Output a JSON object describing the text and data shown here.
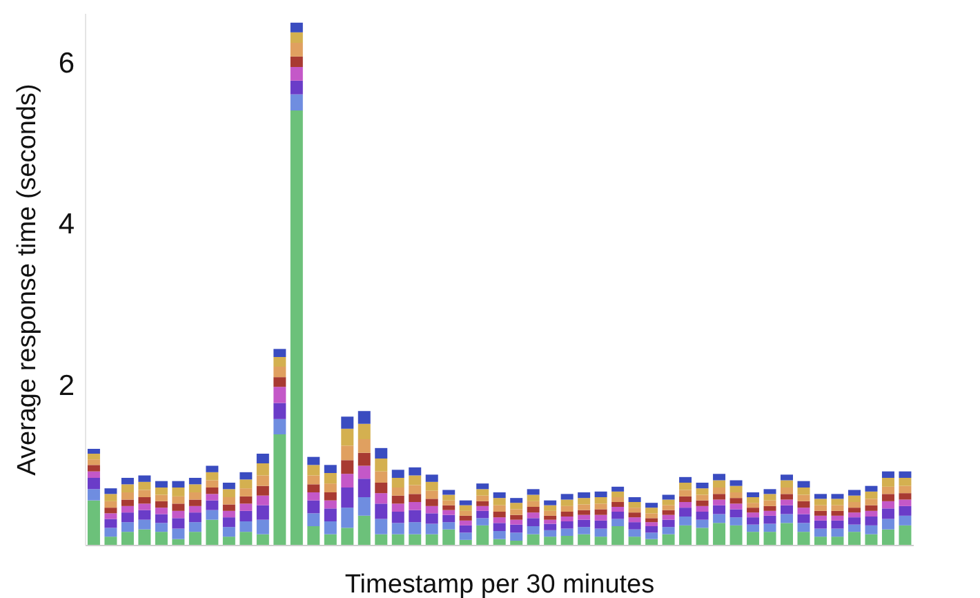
{
  "chart_data": {
    "type": "bar",
    "stacked": true,
    "xlabel": "Timestamp per 30 minutes",
    "ylabel": "Average response time (seconds)",
    "categories": [
      null,
      null,
      null,
      null,
      null,
      null,
      null,
      null,
      null,
      null,
      null,
      null,
      null,
      null,
      null,
      null,
      null,
      null,
      null,
      null,
      null,
      null,
      null,
      null,
      null,
      null,
      null,
      null,
      null,
      null,
      null,
      null,
      null,
      null,
      null,
      null,
      null,
      null,
      null,
      null,
      null,
      null,
      null,
      null,
      null,
      null,
      null,
      null,
      null
    ],
    "ylim": [
      0,
      6.6
    ],
    "yticks": [
      2,
      4,
      6
    ],
    "grid": false,
    "legend": false,
    "series": [
      {
        "color": "#6cc17a",
        "values": [
          0.56,
          0.11,
          0.17,
          0.2,
          0.17,
          0.08,
          0.17,
          0.32,
          0.11,
          0.17,
          0.14,
          1.38,
          5.4,
          0.24,
          0.14,
          0.22,
          0.37,
          0.14,
          0.14,
          0.14,
          0.14,
          0.2,
          0.07,
          0.25,
          0.08,
          0.06,
          0.14,
          0.11,
          0.12,
          0.14,
          0.11,
          0.24,
          0.11,
          0.08,
          0.14,
          0.25,
          0.22,
          0.28,
          0.25,
          0.17,
          0.17,
          0.28,
          0.17,
          0.11,
          0.11,
          0.17,
          0.14,
          0.2,
          0.25
        ]
      },
      {
        "color": "#6f8de0",
        "values": [
          0.14,
          0.11,
          0.12,
          0.12,
          0.11,
          0.13,
          0.12,
          0.12,
          0.12,
          0.13,
          0.18,
          0.19,
          0.2,
          0.16,
          0.16,
          0.25,
          0.23,
          0.19,
          0.14,
          0.15,
          0.13,
          0.09,
          0.09,
          0.09,
          0.1,
          0.1,
          0.1,
          0.08,
          0.09,
          0.09,
          0.1,
          0.09,
          0.09,
          0.08,
          0.09,
          0.11,
          0.1,
          0.11,
          0.1,
          0.09,
          0.1,
          0.11,
          0.11,
          0.1,
          0.1,
          0.09,
          0.11,
          0.13,
          0.12
        ]
      },
      {
        "color": "#6a3cc8",
        "values": [
          0.14,
          0.11,
          0.12,
          0.12,
          0.11,
          0.13,
          0.12,
          0.12,
          0.12,
          0.13,
          0.18,
          0.2,
          0.17,
          0.16,
          0.16,
          0.25,
          0.23,
          0.19,
          0.14,
          0.15,
          0.13,
          0.09,
          0.09,
          0.09,
          0.1,
          0.1,
          0.1,
          0.08,
          0.09,
          0.09,
          0.1,
          0.09,
          0.09,
          0.08,
          0.09,
          0.11,
          0.1,
          0.11,
          0.1,
          0.09,
          0.1,
          0.11,
          0.11,
          0.1,
          0.1,
          0.09,
          0.11,
          0.13,
          0.12
        ]
      },
      {
        "color": "#c458c8",
        "values": [
          0.08,
          0.07,
          0.08,
          0.08,
          0.08,
          0.09,
          0.08,
          0.08,
          0.08,
          0.09,
          0.12,
          0.2,
          0.17,
          0.1,
          0.1,
          0.17,
          0.16,
          0.13,
          0.1,
          0.1,
          0.09,
          0.06,
          0.06,
          0.06,
          0.07,
          0.06,
          0.07,
          0.05,
          0.06,
          0.06,
          0.07,
          0.06,
          0.06,
          0.05,
          0.06,
          0.07,
          0.07,
          0.07,
          0.07,
          0.06,
          0.06,
          0.07,
          0.08,
          0.06,
          0.06,
          0.06,
          0.07,
          0.09,
          0.08
        ]
      },
      {
        "color": "#a83a32",
        "values": [
          0.08,
          0.07,
          0.08,
          0.08,
          0.08,
          0.09,
          0.08,
          0.08,
          0.08,
          0.09,
          0.12,
          0.12,
          0.13,
          0.1,
          0.1,
          0.17,
          0.16,
          0.13,
          0.1,
          0.1,
          0.09,
          0.06,
          0.06,
          0.06,
          0.07,
          0.06,
          0.07,
          0.05,
          0.06,
          0.06,
          0.07,
          0.06,
          0.06,
          0.05,
          0.06,
          0.07,
          0.07,
          0.07,
          0.07,
          0.06,
          0.06,
          0.07,
          0.08,
          0.06,
          0.06,
          0.06,
          0.07,
          0.09,
          0.08
        ]
      },
      {
        "color": "#e0a060",
        "values": [
          0.07,
          0.08,
          0.09,
          0.09,
          0.08,
          0.09,
          0.09,
          0.09,
          0.09,
          0.1,
          0.13,
          0.13,
          0.17,
          0.11,
          0.11,
          0.18,
          0.17,
          0.14,
          0.1,
          0.11,
          0.1,
          0.06,
          0.06,
          0.07,
          0.08,
          0.07,
          0.07,
          0.06,
          0.07,
          0.07,
          0.07,
          0.06,
          0.06,
          0.06,
          0.06,
          0.08,
          0.07,
          0.08,
          0.07,
          0.06,
          0.07,
          0.08,
          0.08,
          0.07,
          0.07,
          0.07,
          0.08,
          0.09,
          0.09
        ]
      },
      {
        "color": "#d4b050",
        "values": [
          0.07,
          0.09,
          0.1,
          0.1,
          0.09,
          0.11,
          0.1,
          0.1,
          0.1,
          0.11,
          0.15,
          0.12,
          0.13,
          0.13,
          0.13,
          0.21,
          0.19,
          0.16,
          0.12,
          0.12,
          0.11,
          0.07,
          0.07,
          0.08,
          0.09,
          0.08,
          0.08,
          0.07,
          0.08,
          0.08,
          0.08,
          0.07,
          0.07,
          0.07,
          0.07,
          0.09,
          0.08,
          0.09,
          0.08,
          0.07,
          0.08,
          0.09,
          0.09,
          0.08,
          0.08,
          0.08,
          0.09,
          0.11,
          0.1
        ]
      },
      {
        "color": "#3a4cc0",
        "values": [
          0.06,
          0.07,
          0.08,
          0.08,
          0.08,
          0.08,
          0.08,
          0.08,
          0.08,
          0.09,
          0.12,
          0.1,
          0.12,
          0.1,
          0.1,
          0.15,
          0.16,
          0.13,
          0.1,
          0.1,
          0.09,
          0.06,
          0.06,
          0.07,
          0.07,
          0.06,
          0.07,
          0.06,
          0.07,
          0.07,
          0.07,
          0.06,
          0.06,
          0.06,
          0.06,
          0.07,
          0.07,
          0.08,
          0.07,
          0.06,
          0.06,
          0.07,
          0.08,
          0.06,
          0.06,
          0.07,
          0.07,
          0.08,
          0.08
        ]
      }
    ]
  }
}
